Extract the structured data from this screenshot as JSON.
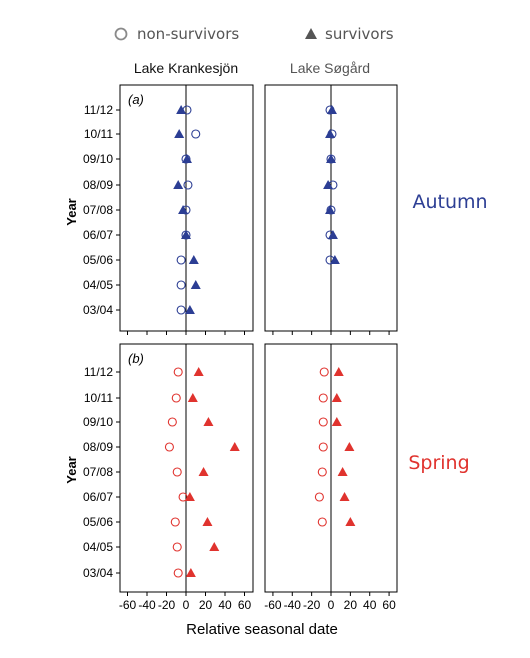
{
  "legend": {
    "non_survivors": "non-survivors",
    "survivors": "survivors"
  },
  "colors": {
    "autumn": "#2c3e94",
    "spring": "#e0332e",
    "legend_marker": "#8a8a8a",
    "axis": "#000000"
  },
  "column_titles": [
    "Lake Krankesjön",
    "Lake Søgård"
  ],
  "row_labels": [
    "Autumn",
    "Spring"
  ],
  "panel_tags": [
    "(a)",
    "(b)"
  ],
  "y_axis_label": "Year",
  "x_axis_label": "Relative seasonal date",
  "chart_data": [
    {
      "type": "scatter",
      "panel": "Autumn – Lake Krankesjön",
      "categories": [
        "11/12",
        "10/11",
        "09/10",
        "08/09",
        "07/08",
        "06/07",
        "05/06",
        "04/05",
        "03/04"
      ],
      "xlim": [
        -70,
        70
      ],
      "xticks": [
        -60,
        -40,
        -20,
        0,
        20,
        40,
        60
      ],
      "series": [
        {
          "name": "non-survivors",
          "marker": "circle",
          "values": [
            1,
            10,
            0,
            2,
            0,
            0,
            -5,
            -5,
            -5
          ]
        },
        {
          "name": "survivors",
          "marker": "triangle",
          "values": [
            -5,
            -7,
            1,
            -8,
            -3,
            0,
            8,
            10,
            4
          ]
        }
      ]
    },
    {
      "type": "scatter",
      "panel": "Autumn – Lake Søgård",
      "categories": [
        "11/12",
        "10/11",
        "09/10",
        "08/09",
        "07/08",
        "06/07",
        "05/06"
      ],
      "xlim": [
        -70,
        70
      ],
      "xticks": [
        -60,
        -40,
        -20,
        0,
        20,
        40,
        60
      ],
      "series": [
        {
          "name": "non-survivors",
          "marker": "circle",
          "values": [
            -1,
            1,
            0,
            2,
            0,
            -1,
            -1
          ]
        },
        {
          "name": "survivors",
          "marker": "triangle",
          "values": [
            1,
            -1,
            0,
            -3,
            -1,
            2,
            4
          ]
        }
      ]
    },
    {
      "type": "scatter",
      "panel": "Spring – Lake Krankesjön",
      "categories": [
        "11/12",
        "10/11",
        "09/10",
        "08/09",
        "07/08",
        "06/07",
        "05/06",
        "04/05",
        "03/04"
      ],
      "xlim": [
        -70,
        70
      ],
      "xticks": [
        -60,
        -40,
        -20,
        0,
        20,
        40,
        60
      ],
      "series": [
        {
          "name": "non-survivors",
          "marker": "circle",
          "values": [
            -8,
            -10,
            -14,
            -17,
            -9,
            -3,
            -11,
            -9,
            -8
          ]
        },
        {
          "name": "survivors",
          "marker": "triangle",
          "values": [
            13,
            7,
            23,
            50,
            18,
            4,
            22,
            29,
            5
          ]
        }
      ]
    },
    {
      "type": "scatter",
      "panel": "Spring – Lake Søgård",
      "categories": [
        "11/12",
        "10/11",
        "09/10",
        "08/09",
        "07/08",
        "06/07",
        "05/06"
      ],
      "xlim": [
        -70,
        70
      ],
      "xticks": [
        -60,
        -40,
        -20,
        0,
        20,
        40,
        60
      ],
      "series": [
        {
          "name": "non-survivors",
          "marker": "circle",
          "values": [
            -7,
            -8,
            -8,
            -8,
            -9,
            -12,
            -9
          ]
        },
        {
          "name": "survivors",
          "marker": "triangle",
          "values": [
            8,
            6,
            6,
            19,
            12,
            14,
            20
          ]
        }
      ]
    }
  ]
}
